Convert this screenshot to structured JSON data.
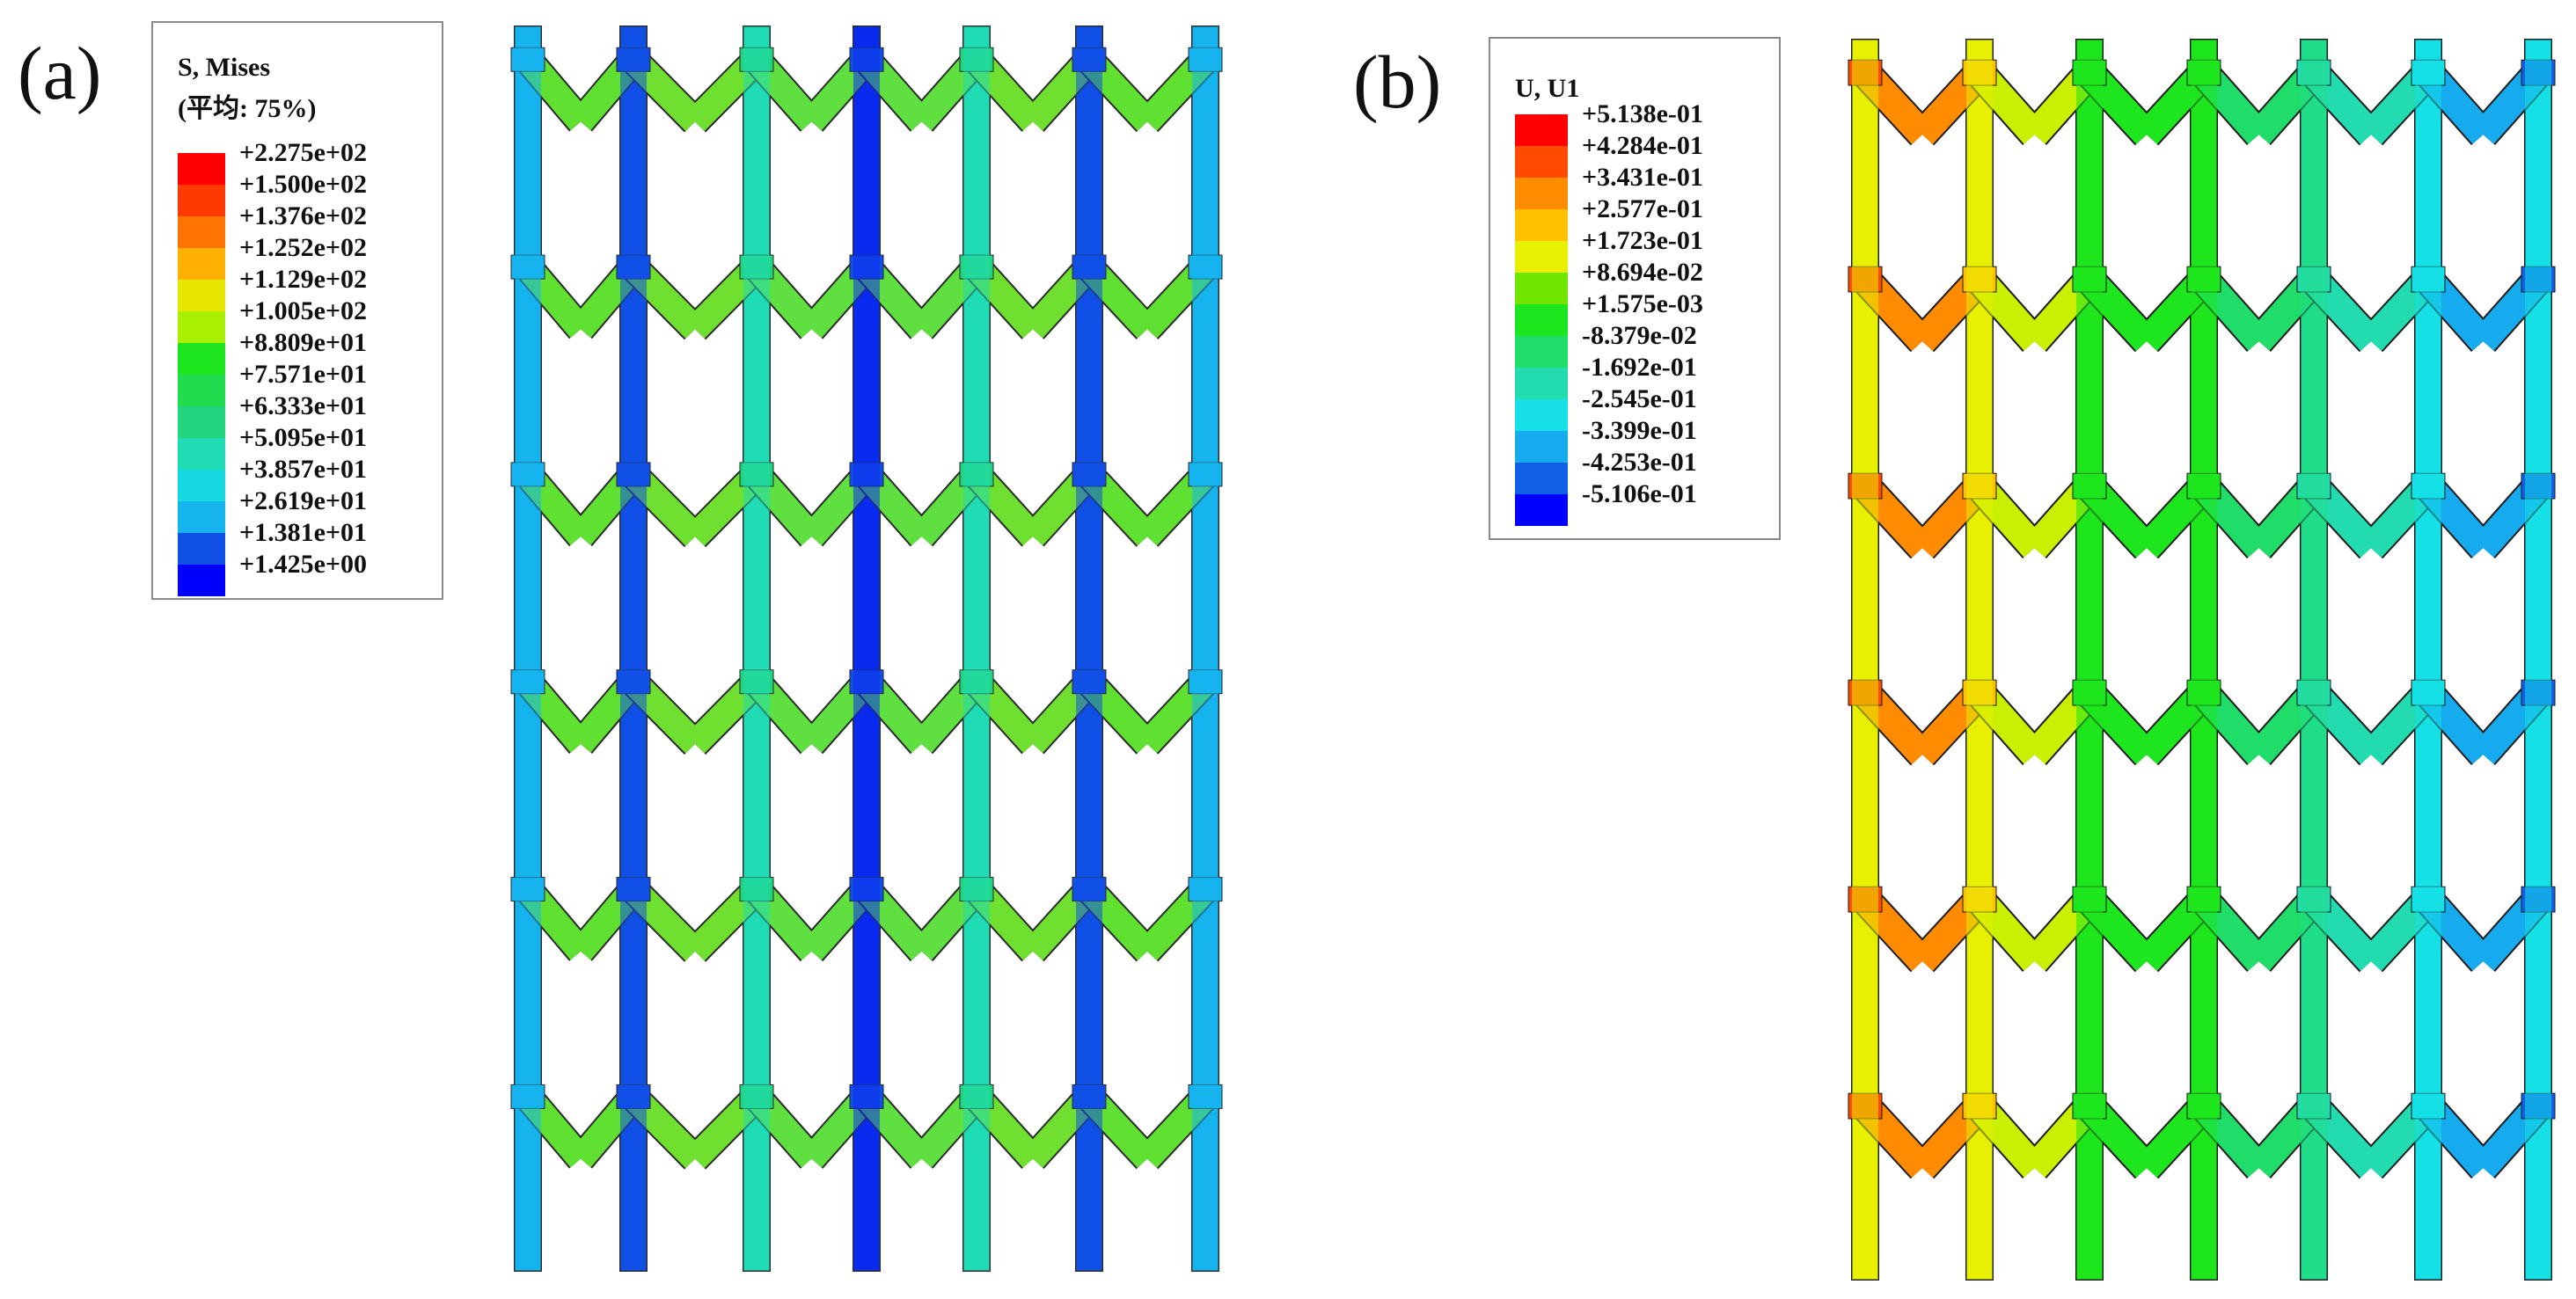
{
  "panels": [
    {
      "id": "a",
      "label": "(a)",
      "legend": {
        "title_line1": "S, Mises",
        "title_line2": "(平均: 75%)",
        "entries": [
          "+2.275e+02",
          "+1.500e+02",
          "+1.376e+02",
          "+1.252e+02",
          "+1.129e+02",
          "+1.005e+02",
          "+8.809e+01",
          "+7.571e+01",
          "+6.333e+01",
          "+5.095e+01",
          "+3.857e+01",
          "+2.619e+01",
          "+1.381e+01",
          "+1.425e+00"
        ],
        "colors": [
          "#ff0000",
          "#ff3a00",
          "#ff7400",
          "#ffb000",
          "#e6e600",
          "#a8f000",
          "#1ee61e",
          "#20dd50",
          "#22d47e",
          "#20dcb4",
          "#16d8e0",
          "#16b4ee",
          "#1050e6",
          "#0000ff"
        ]
      }
    },
    {
      "id": "b",
      "label": "(b)",
      "legend": {
        "title_line1": "U, U1",
        "entries": [
          "+5.138e-01",
          "+4.284e-01",
          "+3.431e-01",
          "+2.577e-01",
          "+1.723e-01",
          "+8.694e-02",
          "+1.575e-03",
          "-8.379e-02",
          "-1.692e-01",
          "-2.545e-01",
          "-3.399e-01",
          "-4.253e-01",
          "-5.106e-01"
        ],
        "colors": [
          "#ff0000",
          "#ff4a00",
          "#ff8c00",
          "#ffc000",
          "#e6f000",
          "#70e600",
          "#1ee61e",
          "#20dd6a",
          "#22dcb0",
          "#16e0e6",
          "#16aaee",
          "#1060e6",
          "#0000ff"
        ]
      }
    }
  ]
}
